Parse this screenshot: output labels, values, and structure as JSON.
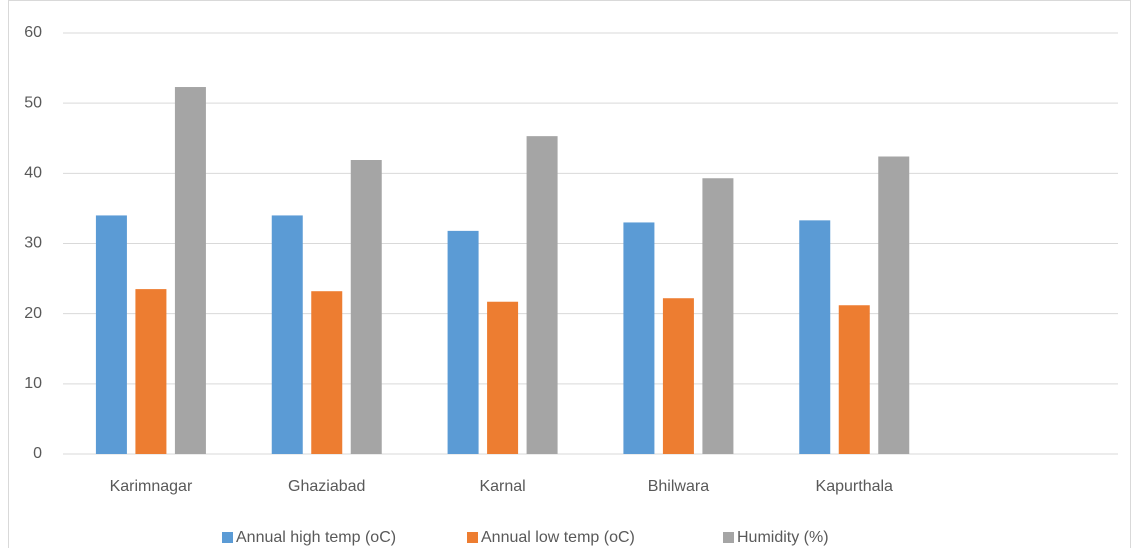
{
  "chart_data": {
    "type": "bar",
    "categories": [
      "Karimnagar",
      "Ghaziabad",
      "Karnal",
      "Bhilwara",
      "Kapurthala",
      null
    ],
    "series": [
      {
        "name": "Annual high temp (oC)",
        "color": "#5b9bd5",
        "values": [
          34.0,
          34.0,
          31.8,
          33.0,
          33.3,
          null
        ]
      },
      {
        "name": "Annual low temp (oC)",
        "color": "#ed7d31",
        "values": [
          23.5,
          23.2,
          21.7,
          22.2,
          21.2,
          null
        ]
      },
      {
        "name": "Humidity (%)",
        "color": "#a5a5a5",
        "values": [
          52.3,
          41.9,
          45.3,
          39.3,
          42.4,
          null
        ]
      }
    ],
    "ylim": [
      0,
      60
    ],
    "yticks": [
      0,
      10,
      20,
      30,
      40,
      50,
      60
    ],
    "grid": true,
    "legend": "bottom"
  }
}
